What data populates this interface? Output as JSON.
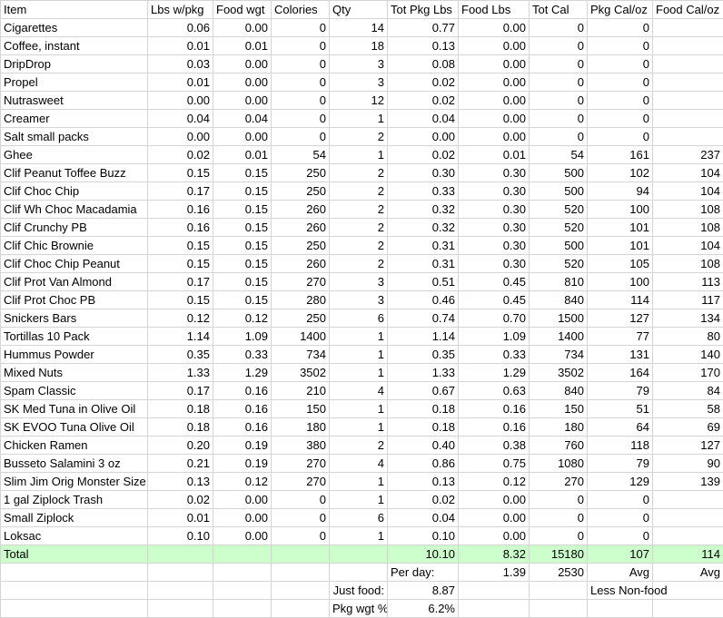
{
  "header": [
    "Item",
    "Lbs w/pkg",
    "Food wgt",
    "Colories",
    "Qty",
    "Tot Pkg Lbs",
    "Food Lbs",
    "Tot Cal",
    "Pkg Cal/oz",
    "Food Cal/oz"
  ],
  "rows": [
    [
      "Cigarettes",
      "0.06",
      "0.00",
      "0",
      "14",
      "0.77",
      "0.00",
      "0",
      "0"
    ],
    [
      "Coffee, instant",
      "0.01",
      "0.01",
      "0",
      "18",
      "0.13",
      "0.00",
      "0",
      "0"
    ],
    [
      "DripDrop",
      "0.03",
      "0.00",
      "0",
      "3",
      "0.08",
      "0.00",
      "0",
      "0"
    ],
    [
      "Propel",
      "0.01",
      "0.00",
      "0",
      "3",
      "0.02",
      "0.00",
      "0",
      "0"
    ],
    [
      "Nutrasweet",
      "0.00",
      "0.00",
      "0",
      "12",
      "0.02",
      "0.00",
      "0",
      "0"
    ],
    [
      "Creamer",
      "0.04",
      "0.04",
      "0",
      "1",
      "0.04",
      "0.00",
      "0",
      "0"
    ],
    [
      "Salt small packs",
      "0.00",
      "0.00",
      "0",
      "2",
      "0.00",
      "0.00",
      "0",
      "0"
    ],
    [
      "Ghee",
      "0.02",
      "0.01",
      "54",
      "1",
      "0.02",
      "0.01",
      "54",
      "161",
      "237"
    ],
    [
      "Clif Peanut Toffee Buzz",
      "0.15",
      "0.15",
      "250",
      "2",
      "0.30",
      "0.30",
      "500",
      "102",
      "104"
    ],
    [
      "Clif Choc Chip",
      "0.17",
      "0.15",
      "250",
      "2",
      "0.33",
      "0.30",
      "500",
      "94",
      "104"
    ],
    [
      "Clif Wh Choc Macadamia",
      "0.16",
      "0.15",
      "260",
      "2",
      "0.32",
      "0.30",
      "520",
      "100",
      "108"
    ],
    [
      "Clif Crunchy PB",
      "0.16",
      "0.15",
      "260",
      "2",
      "0.32",
      "0.30",
      "520",
      "101",
      "108"
    ],
    [
      "Clif Chic Brownie",
      "0.15",
      "0.15",
      "250",
      "2",
      "0.31",
      "0.30",
      "500",
      "101",
      "104"
    ],
    [
      "Clif Choc Chip Peanut",
      "0.15",
      "0.15",
      "260",
      "2",
      "0.31",
      "0.30",
      "520",
      "105",
      "108"
    ],
    [
      "Clif Prot Van Almond",
      "0.17",
      "0.15",
      "270",
      "3",
      "0.51",
      "0.45",
      "810",
      "100",
      "113"
    ],
    [
      "Clif Prot Choc PB",
      "0.15",
      "0.15",
      "280",
      "3",
      "0.46",
      "0.45",
      "840",
      "114",
      "117"
    ],
    [
      "Snickers Bars",
      "0.12",
      "0.12",
      "250",
      "6",
      "0.74",
      "0.70",
      "1500",
      "127",
      "134"
    ],
    [
      "Tortillas 10 Pack",
      "1.14",
      "1.09",
      "1400",
      "1",
      "1.14",
      "1.09",
      "1400",
      "77",
      "80"
    ],
    [
      "Hummus Powder",
      "0.35",
      "0.33",
      "734",
      "1",
      "0.35",
      "0.33",
      "734",
      "131",
      "140"
    ],
    [
      "Mixed Nuts",
      "1.33",
      "1.29",
      "3502",
      "1",
      "1.33",
      "1.29",
      "3502",
      "164",
      "170"
    ],
    [
      "Spam Classic",
      "0.17",
      "0.16",
      "210",
      "4",
      "0.67",
      "0.63",
      "840",
      "79",
      "84"
    ],
    [
      "SK Med Tuna in Olive Oil",
      "0.18",
      "0.16",
      "150",
      "1",
      "0.18",
      "0.16",
      "150",
      "51",
      "58"
    ],
    [
      "SK EVOO Tuna Olive Oil",
      "0.18",
      "0.16",
      "180",
      "1",
      "0.18",
      "0.16",
      "180",
      "64",
      "69"
    ],
    [
      "Chicken Ramen",
      "0.20",
      "0.19",
      "380",
      "2",
      "0.40",
      "0.38",
      "760",
      "118",
      "127"
    ],
    [
      "Busseto Salamini 3 oz",
      "0.21",
      "0.19",
      "270",
      "4",
      "0.86",
      "0.75",
      "1080",
      "79",
      "90"
    ],
    [
      "Slim Jim Orig Monster Size",
      "0.13",
      "0.12",
      "270",
      "1",
      "0.13",
      "0.12",
      "270",
      "129",
      "139"
    ],
    [
      "1 gal Ziplock Trash",
      "0.02",
      "0.00",
      "0",
      "1",
      "0.02",
      "0.00",
      "0",
      "0"
    ],
    [
      "Small Ziplock",
      "0.01",
      "0.00",
      "0",
      "6",
      "0.04",
      "0.00",
      "0",
      "0"
    ],
    [
      "Loksac",
      "0.10",
      "0.00",
      "0",
      "1",
      "0.10",
      "0.00",
      "0",
      "0"
    ]
  ],
  "total": {
    "label": "Total",
    "tot_pkg_lbs": "10.10",
    "food_lbs": "8.32",
    "tot_cal": "15180",
    "pkg_cal_oz": "107",
    "food_cal_oz": "114"
  },
  "per_day": {
    "label": "Per day:",
    "food_lbs": "1.39",
    "tot_cal": "2530",
    "pkg_cal_oz": "Avg",
    "food_cal_oz": "Avg"
  },
  "just_food": {
    "label": "Just food:",
    "value": "8.87",
    "note": "Less Non-food"
  },
  "pkg_wgt": {
    "label": "Pkg wgt %:",
    "value": "6.2%"
  }
}
